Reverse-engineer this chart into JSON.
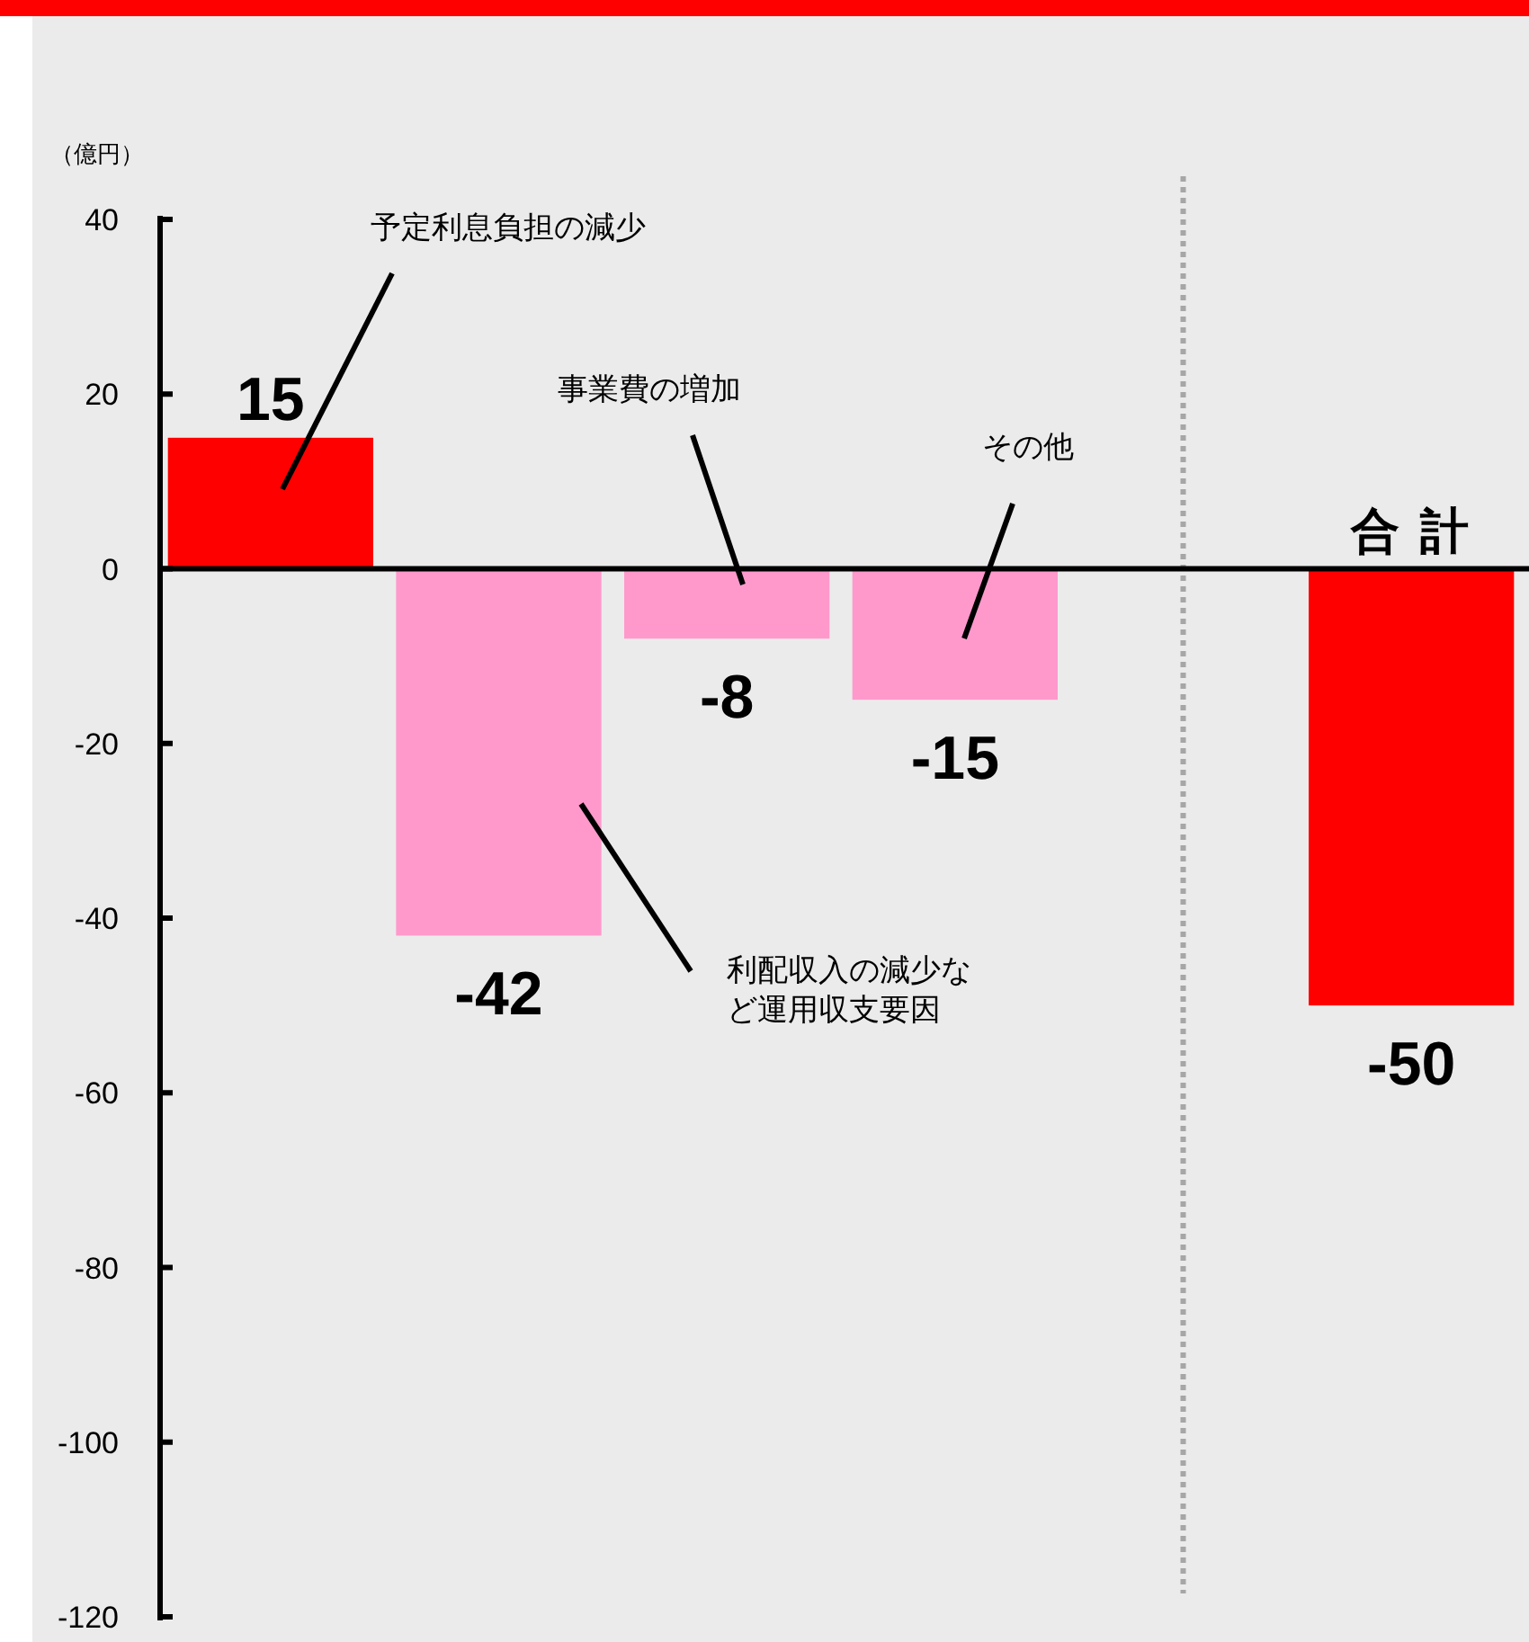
{
  "chart_data": {
    "type": "bar",
    "ylabel": "（億円）",
    "categories": [
      null,
      null,
      null,
      null,
      null,
      "合 計"
    ],
    "values": [
      15,
      -42,
      -8,
      -15,
      null,
      -50
    ],
    "colors": [
      "#ff0000",
      "#ff99cc",
      "#ff99cc",
      "#ff99cc",
      null,
      "#ff0000"
    ],
    "ylim": [
      -120,
      40
    ],
    "yticks": [
      -120,
      -100,
      -80,
      -60,
      -40,
      -20,
      0,
      20,
      40
    ],
    "data_labels": true,
    "annotations": [
      "予定利息負担の減少",
      "利配収入の減少など運用収支要因",
      "事業費の増加",
      "その他"
    ]
  }
}
